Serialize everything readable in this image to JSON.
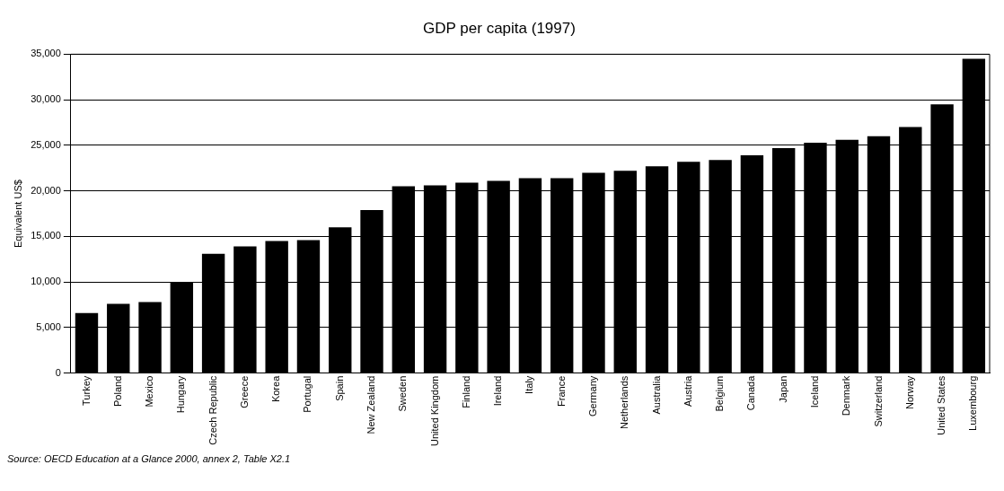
{
  "chart_data": {
    "type": "bar",
    "title": "GDP per capita (1997)",
    "ylabel": "Equivalent US$",
    "categories": [
      "Turkey",
      "Poland",
      "Mexico",
      "Hungary",
      "Czech Republic",
      "Greece",
      "Korea",
      "Portugal",
      "Spain",
      "New Zealand",
      "Sweden",
      "United Kingdom",
      "Finland",
      "Ireland",
      "Italy",
      "France",
      "Germany",
      "Netherlands",
      "Australia",
      "Austria",
      "Belgium",
      "Canada",
      "Japan",
      "Iceland",
      "Denmark",
      "Switzerland",
      "Norway",
      "United States",
      "Luxembourg"
    ],
    "values": [
      6600,
      7600,
      7800,
      10000,
      13100,
      13900,
      14500,
      14600,
      16000,
      17900,
      20500,
      20600,
      20900,
      21100,
      21400,
      21400,
      22000,
      22200,
      22700,
      23200,
      23400,
      23900,
      24700,
      25300,
      25600,
      26000,
      27000,
      29500,
      34500
    ],
    "color": "#000000",
    "ylim": [
      0,
      35000
    ],
    "yticks": [
      {
        "value": 0,
        "label": "0"
      },
      {
        "value": 5000,
        "label": "5,000"
      },
      {
        "value": 10000,
        "label": "10,000"
      },
      {
        "value": 15000,
        "label": "15,000"
      },
      {
        "value": 20000,
        "label": "20,000"
      },
      {
        "value": 25000,
        "label": "25,000"
      },
      {
        "value": 30000,
        "label": "30,000"
      },
      {
        "value": 35000,
        "label": "35,000"
      }
    ],
    "grid": "y",
    "annotations": [
      "Source: OECD Education at a Glance 2000, annex 2, Table X2.1"
    ]
  }
}
